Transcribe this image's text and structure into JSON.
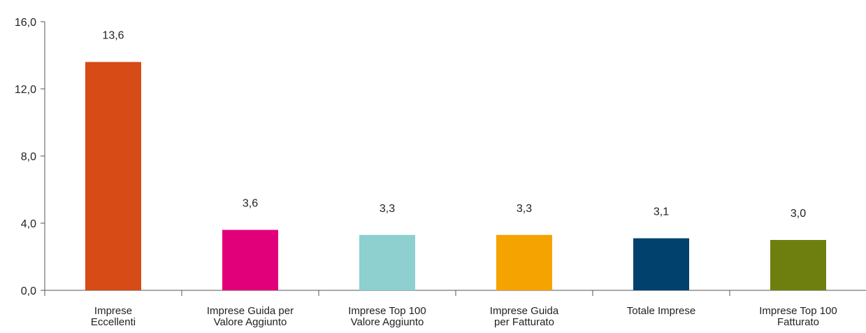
{
  "chart_data": {
    "type": "bar",
    "categories": [
      [
        "Imprese",
        "Eccellenti"
      ],
      [
        "Imprese Guida per",
        "Valore Aggiunto"
      ],
      [
        "Imprese Top 100",
        "Valore Aggiunto"
      ],
      [
        "Imprese Guida",
        "per Fatturato"
      ],
      [
        "Totale Imprese"
      ],
      [
        "Imprese Top 100",
        "Fatturato"
      ]
    ],
    "values": [
      13.6,
      3.6,
      3.3,
      3.3,
      3.1,
      3.0
    ],
    "value_labels": [
      "13,6",
      "3,6",
      "3,3",
      "3,3",
      "3,1",
      "3,0"
    ],
    "colors": [
      "#D64B16",
      "#E2007A",
      "#8ECFD0",
      "#F5A300",
      "#00416E",
      "#6E7F10"
    ],
    "ylim": [
      0,
      16
    ],
    "yticks": [
      0,
      4,
      8,
      12,
      16
    ],
    "ytick_labels": [
      "0,0",
      "4,0",
      "8,0",
      "12,0",
      "16,0"
    ],
    "grid": false,
    "legend": "none"
  }
}
